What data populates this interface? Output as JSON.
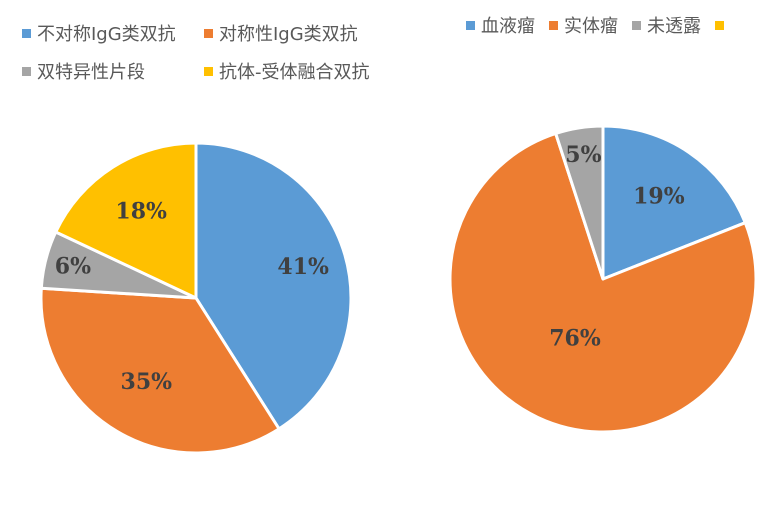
{
  "chart_data": [
    {
      "type": "pie",
      "title": "",
      "legend_position": "top-left",
      "categories": [
        "不对称IgG类双抗",
        "对称性IgG类双抗",
        "双特异性片段",
        "抗体-受体融合双抗"
      ],
      "values": [
        41,
        35,
        6,
        18
      ],
      "labels": [
        "41%",
        "35%",
        "6%",
        "18%"
      ],
      "colors": [
        "#5B9BD5",
        "#ED7D31",
        "#A5A5A5",
        "#FFC000"
      ]
    },
    {
      "type": "pie",
      "title": "",
      "legend_position": "top-right",
      "categories": [
        "血液瘤",
        "实体瘤",
        "未透露",
        ""
      ],
      "values": [
        19,
        76,
        5,
        0
      ],
      "labels": [
        "19%",
        "76%",
        "5%",
        ""
      ],
      "colors": [
        "#5B9BD5",
        "#ED7D31",
        "#A5A5A5",
        "#FFC000"
      ]
    }
  ]
}
